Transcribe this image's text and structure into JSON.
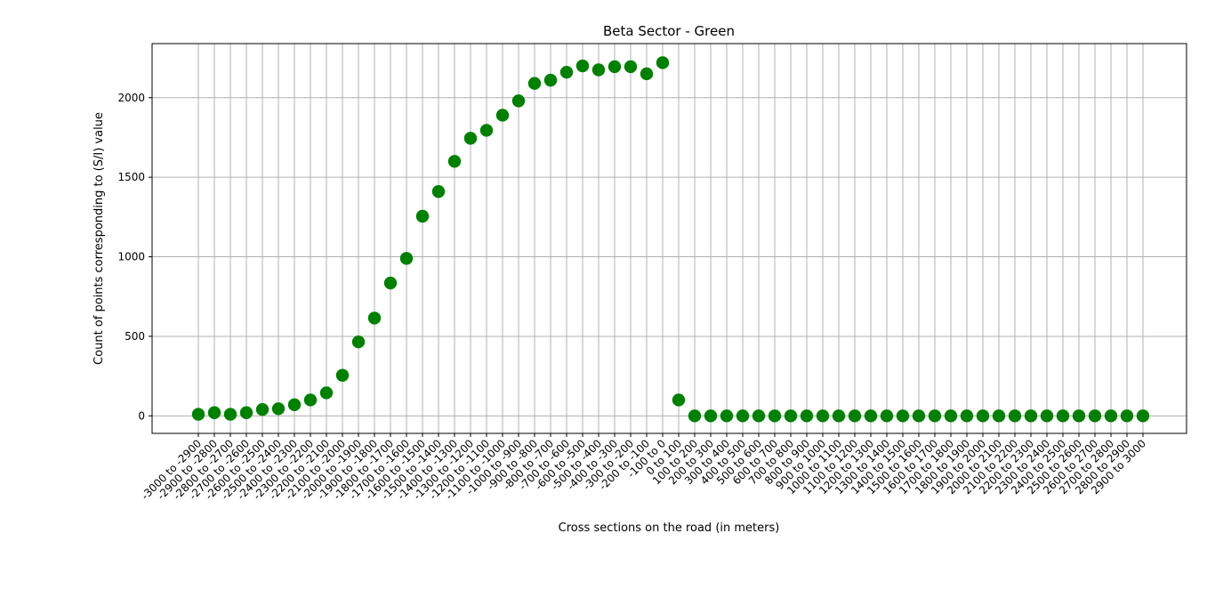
{
  "chart_data": {
    "type": "scatter",
    "title": "Beta Sector - Green",
    "xlabel": "Cross sections on the road (in meters)",
    "ylabel": "Count of points corresponding to (S/I) value",
    "marker_color": "#008000",
    "grid": true,
    "ylim": [
      -110,
      2340
    ],
    "yticks": [
      0,
      500,
      1000,
      1500,
      2000
    ],
    "categories": [
      "-3000 to -2900",
      "-2900 to -2800",
      "-2800 to -2700",
      "-2700 to -2600",
      "-2600 to -2500",
      "-2500 to -2400",
      "-2400 to -2300",
      "-2300 to -2200",
      "-2200 to -2100",
      "-2100 to -2000",
      "-2000 to -1900",
      "-1900 to -1800",
      "-1800 to -1700",
      "-1700 to -1600",
      "-1600 to -1500",
      "-1500 to -1400",
      "-1400 to -1300",
      "-1300 to -1200",
      "-1200 to -1100",
      "-1100 to -1000",
      "-1000 to -900",
      "-900 to -800",
      "-800 to -700",
      "-700 to -600",
      "-600 to -500",
      "-500 to -400",
      "-400 to -300",
      "-300 to -200",
      "-200 to -100",
      "-100 to 0",
      "0 to 100",
      "100 to 200",
      "200 to 300",
      "300 to 400",
      "400 to 500",
      "500 to 600",
      "600 to 700",
      "700 to 800",
      "800 to 900",
      "900 to 1000",
      "1000 to 1100",
      "1100 to 1200",
      "1200 to 1300",
      "1300 to 1400",
      "1400 to 1500",
      "1500 to 1600",
      "1600 to 1700",
      "1700 to 1800",
      "1800 to 1900",
      "1900 to 2000",
      "2000 to 2100",
      "2100 to 2200",
      "2200 to 2300",
      "2300 to 2400",
      "2400 to 2500",
      "2500 to 2600",
      "2600 to 2700",
      "2700 to 2800",
      "2800 to 2900",
      "2900 to 3000"
    ],
    "values": [
      10,
      20,
      10,
      20,
      40,
      45,
      70,
      100,
      145,
      255,
      465,
      615,
      835,
      990,
      1255,
      1410,
      1600,
      1745,
      1795,
      1890,
      1980,
      2090,
      2110,
      2160,
      2200,
      2175,
      2195,
      2195,
      2150,
      2220,
      100,
      0,
      0,
      0,
      0,
      0,
      0,
      0,
      0,
      0,
      0,
      0,
      0,
      0,
      0,
      0,
      0,
      0,
      0,
      0,
      0,
      0,
      0,
      0,
      0,
      0,
      0,
      0,
      0,
      0
    ]
  }
}
